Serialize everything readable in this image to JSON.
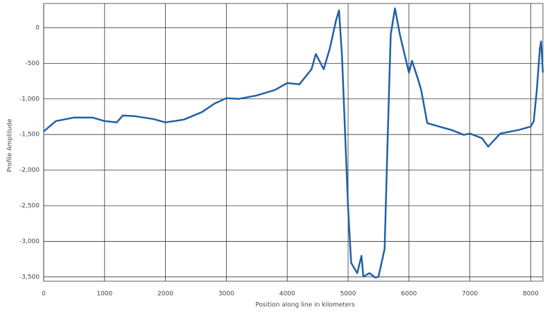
{
  "chart_data": {
    "type": "line",
    "x_label": "Position along line in kilometers",
    "y_label": "Profile Amplitude",
    "x": [
      0,
      200,
      500,
      800,
      1000,
      1200,
      1300,
      1500,
      1800,
      2000,
      2300,
      2600,
      2800,
      3000,
      3200,
      3500,
      3800,
      4000,
      4200,
      4400,
      4470,
      4600,
      4700,
      4800,
      4850,
      4900,
      5000,
      5050,
      5150,
      5220,
      5250,
      5350,
      5450,
      5500,
      5600,
      5650,
      5700,
      5770,
      5850,
      6000,
      6050,
      6150,
      6200,
      6300,
      6500,
      6700,
      6900,
      7000,
      7200,
      7300,
      7500,
      7800,
      8000,
      8050,
      8100,
      8150,
      8170,
      8200
    ],
    "series": [
      {
        "name": "Profile",
        "color": "#1f5fa8",
        "values": [
          -1456,
          -1311,
          -1262,
          -1262,
          -1311,
          -1330,
          -1233,
          -1243,
          -1282,
          -1330,
          -1291,
          -1185,
          -1068,
          -990,
          -1000,
          -952,
          -874,
          -777,
          -796,
          -583,
          -369,
          -583,
          -291,
          97,
          243,
          -388,
          -2525,
          -3300,
          -3447,
          -3204,
          -3495,
          -3447,
          -3510,
          -3495,
          -3107,
          -1553,
          -97,
          272,
          -97,
          -631,
          -466,
          -728,
          -874,
          -1340,
          -1389,
          -1437,
          -1505,
          -1486,
          -1553,
          -1670,
          -1486,
          -1437,
          -1389,
          -1311,
          -874,
          -291,
          -194,
          -631
        ]
      }
    ],
    "xlim": [
      0,
      8200
    ],
    "ylim": [
      -3560,
      340
    ],
    "xticks": [
      0,
      1000,
      2000,
      3000,
      4000,
      5000,
      6000,
      7000,
      8000
    ],
    "yticks": [
      0,
      -500,
      {
        "value": -1000,
        "label": "-1,000"
      },
      {
        "value": -1500,
        "label": "-1,500"
      },
      {
        "value": -2000,
        "label": "-2,000"
      },
      {
        "value": -2500,
        "label": "-2,500"
      },
      {
        "value": -3000,
        "label": "-3,000"
      },
      {
        "value": -3500,
        "label": "-3,500"
      }
    ],
    "grid": true
  }
}
